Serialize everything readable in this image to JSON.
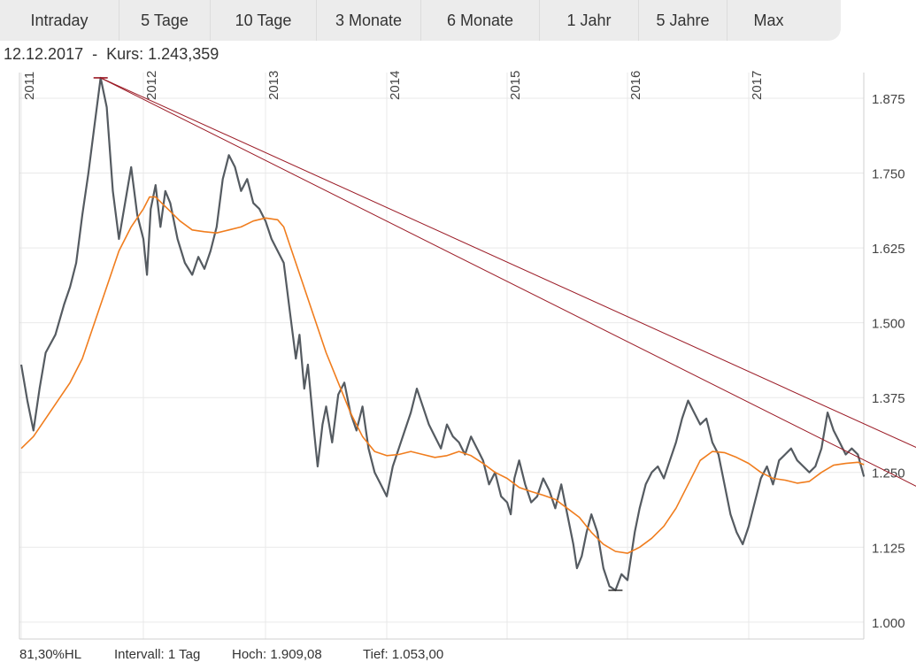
{
  "tabs": [
    "Intraday",
    "5 Tage",
    "10 Tage",
    "3 Monate",
    "6 Monate",
    "1 Jahr",
    "5 Jahre",
    "Max"
  ],
  "header": {
    "date": "12.12.2017",
    "separator": "-",
    "kurs_label": "Kurs:",
    "kurs_value": "1.243,359"
  },
  "footer": {
    "hl": "81,30%HL",
    "interval": "Intervall: 1 Tag",
    "hoch": "Hoch: 1.909,08",
    "tief": "Tief: 1.053,00"
  },
  "colors": {
    "price": "#555b61",
    "moving_average": "#f07d1e",
    "trendline": "#9b1b26",
    "grid": "#e9e9e9"
  },
  "chart_data": {
    "type": "line",
    "x_labels": [
      "2011",
      "2012",
      "2013",
      "2014",
      "2015",
      "2016",
      "2017"
    ],
    "y_ticks": [
      "1.875",
      "1.750",
      "1.625",
      "1.500",
      "1.375",
      "1.250",
      "1.125",
      "1.000"
    ],
    "ylim": [
      1000,
      1909
    ],
    "grid": true,
    "high": 1909.08,
    "low": 1053.0,
    "series": [
      {
        "style": "price",
        "points": [
          [
            2011.0,
            1430
          ],
          [
            2011.05,
            1370
          ],
          [
            2011.1,
            1320
          ],
          [
            2011.15,
            1390
          ],
          [
            2011.2,
            1450
          ],
          [
            2011.28,
            1480
          ],
          [
            2011.35,
            1530
          ],
          [
            2011.4,
            1560
          ],
          [
            2011.45,
            1600
          ],
          [
            2011.5,
            1680
          ],
          [
            2011.55,
            1750
          ],
          [
            2011.6,
            1830
          ],
          [
            2011.65,
            1909
          ],
          [
            2011.7,
            1860
          ],
          [
            2011.75,
            1720
          ],
          [
            2011.8,
            1640
          ],
          [
            2011.85,
            1700
          ],
          [
            2011.9,
            1760
          ],
          [
            2011.95,
            1680
          ],
          [
            2012.0,
            1640
          ],
          [
            2012.03,
            1580
          ],
          [
            2012.06,
            1690
          ],
          [
            2012.1,
            1730
          ],
          [
            2012.14,
            1660
          ],
          [
            2012.18,
            1720
          ],
          [
            2012.22,
            1700
          ],
          [
            2012.28,
            1640
          ],
          [
            2012.34,
            1600
          ],
          [
            2012.4,
            1580
          ],
          [
            2012.45,
            1610
          ],
          [
            2012.5,
            1590
          ],
          [
            2012.55,
            1620
          ],
          [
            2012.6,
            1660
          ],
          [
            2012.65,
            1740
          ],
          [
            2012.7,
            1780
          ],
          [
            2012.75,
            1760
          ],
          [
            2012.8,
            1720
          ],
          [
            2012.85,
            1740
          ],
          [
            2012.9,
            1700
          ],
          [
            2012.95,
            1690
          ],
          [
            2013.0,
            1670
          ],
          [
            2013.05,
            1640
          ],
          [
            2013.1,
            1620
          ],
          [
            2013.15,
            1600
          ],
          [
            2013.2,
            1520
          ],
          [
            2013.25,
            1440
          ],
          [
            2013.28,
            1480
          ],
          [
            2013.32,
            1390
          ],
          [
            2013.35,
            1430
          ],
          [
            2013.4,
            1320
          ],
          [
            2013.43,
            1260
          ],
          [
            2013.47,
            1330
          ],
          [
            2013.5,
            1360
          ],
          [
            2013.55,
            1300
          ],
          [
            2013.6,
            1380
          ],
          [
            2013.65,
            1400
          ],
          [
            2013.7,
            1350
          ],
          [
            2013.75,
            1320
          ],
          [
            2013.8,
            1360
          ],
          [
            2013.85,
            1290
          ],
          [
            2013.9,
            1250
          ],
          [
            2013.95,
            1230
          ],
          [
            2014.0,
            1210
          ],
          [
            2014.05,
            1260
          ],
          [
            2014.1,
            1290
          ],
          [
            2014.15,
            1320
          ],
          [
            2014.2,
            1350
          ],
          [
            2014.25,
            1390
          ],
          [
            2014.3,
            1360
          ],
          [
            2014.35,
            1330
          ],
          [
            2014.4,
            1310
          ],
          [
            2014.45,
            1290
          ],
          [
            2014.5,
            1330
          ],
          [
            2014.55,
            1310
          ],
          [
            2014.6,
            1300
          ],
          [
            2014.65,
            1280
          ],
          [
            2014.7,
            1310
          ],
          [
            2014.75,
            1290
          ],
          [
            2014.8,
            1270
          ],
          [
            2014.85,
            1230
          ],
          [
            2014.9,
            1250
          ],
          [
            2014.95,
            1210
          ],
          [
            2015.0,
            1200
          ],
          [
            2015.03,
            1180
          ],
          [
            2015.06,
            1240
          ],
          [
            2015.1,
            1270
          ],
          [
            2015.15,
            1230
          ],
          [
            2015.2,
            1200
          ],
          [
            2015.25,
            1210
          ],
          [
            2015.3,
            1240
          ],
          [
            2015.35,
            1220
          ],
          [
            2015.4,
            1190
          ],
          [
            2015.45,
            1230
          ],
          [
            2015.5,
            1180
          ],
          [
            2015.55,
            1130
          ],
          [
            2015.58,
            1090
          ],
          [
            2015.62,
            1110
          ],
          [
            2015.66,
            1150
          ],
          [
            2015.7,
            1180
          ],
          [
            2015.75,
            1150
          ],
          [
            2015.8,
            1090
          ],
          [
            2015.85,
            1060
          ],
          [
            2015.9,
            1053
          ],
          [
            2015.95,
            1080
          ],
          [
            2016.0,
            1070
          ],
          [
            2016.03,
            1110
          ],
          [
            2016.06,
            1150
          ],
          [
            2016.1,
            1190
          ],
          [
            2016.15,
            1230
          ],
          [
            2016.2,
            1250
          ],
          [
            2016.25,
            1260
          ],
          [
            2016.3,
            1240
          ],
          [
            2016.35,
            1270
          ],
          [
            2016.4,
            1300
          ],
          [
            2016.45,
            1340
          ],
          [
            2016.5,
            1370
          ],
          [
            2016.55,
            1350
          ],
          [
            2016.6,
            1330
          ],
          [
            2016.65,
            1340
          ],
          [
            2016.7,
            1300
          ],
          [
            2016.75,
            1280
          ],
          [
            2016.8,
            1230
          ],
          [
            2016.85,
            1180
          ],
          [
            2016.9,
            1150
          ],
          [
            2016.95,
            1130
          ],
          [
            2017.0,
            1160
          ],
          [
            2017.05,
            1200
          ],
          [
            2017.1,
            1240
          ],
          [
            2017.15,
            1260
          ],
          [
            2017.2,
            1230
          ],
          [
            2017.25,
            1270
          ],
          [
            2017.3,
            1280
          ],
          [
            2017.35,
            1290
          ],
          [
            2017.4,
            1270
          ],
          [
            2017.45,
            1260
          ],
          [
            2017.5,
            1250
          ],
          [
            2017.55,
            1260
          ],
          [
            2017.6,
            1290
          ],
          [
            2017.65,
            1350
          ],
          [
            2017.7,
            1320
          ],
          [
            2017.75,
            1300
          ],
          [
            2017.8,
            1280
          ],
          [
            2017.85,
            1290
          ],
          [
            2017.9,
            1280
          ],
          [
            2017.95,
            1243
          ]
        ]
      },
      {
        "style": "moving_average",
        "points": [
          [
            2011.0,
            1290
          ],
          [
            2011.1,
            1310
          ],
          [
            2011.2,
            1340
          ],
          [
            2011.3,
            1370
          ],
          [
            2011.4,
            1400
          ],
          [
            2011.5,
            1440
          ],
          [
            2011.6,
            1500
          ],
          [
            2011.7,
            1560
          ],
          [
            2011.8,
            1620
          ],
          [
            2011.9,
            1660
          ],
          [
            2012.0,
            1690
          ],
          [
            2012.05,
            1710
          ],
          [
            2012.1,
            1710
          ],
          [
            2012.15,
            1700
          ],
          [
            2012.2,
            1690
          ],
          [
            2012.3,
            1670
          ],
          [
            2012.4,
            1655
          ],
          [
            2012.5,
            1652
          ],
          [
            2012.6,
            1650
          ],
          [
            2012.7,
            1655
          ],
          [
            2012.8,
            1660
          ],
          [
            2012.9,
            1670
          ],
          [
            2013.0,
            1675
          ],
          [
            2013.1,
            1672
          ],
          [
            2013.15,
            1660
          ],
          [
            2013.2,
            1630
          ],
          [
            2013.3,
            1570
          ],
          [
            2013.4,
            1510
          ],
          [
            2013.5,
            1450
          ],
          [
            2013.6,
            1400
          ],
          [
            2013.7,
            1350
          ],
          [
            2013.8,
            1310
          ],
          [
            2013.9,
            1285
          ],
          [
            2014.0,
            1278
          ],
          [
            2014.1,
            1280
          ],
          [
            2014.2,
            1285
          ],
          [
            2014.3,
            1280
          ],
          [
            2014.4,
            1275
          ],
          [
            2014.5,
            1278
          ],
          [
            2014.6,
            1285
          ],
          [
            2014.7,
            1278
          ],
          [
            2014.8,
            1265
          ],
          [
            2014.9,
            1250
          ],
          [
            2015.0,
            1240
          ],
          [
            2015.1,
            1225
          ],
          [
            2015.2,
            1218
          ],
          [
            2015.3,
            1212
          ],
          [
            2015.4,
            1205
          ],
          [
            2015.5,
            1190
          ],
          [
            2015.6,
            1175
          ],
          [
            2015.7,
            1150
          ],
          [
            2015.8,
            1130
          ],
          [
            2015.9,
            1118
          ],
          [
            2016.0,
            1115
          ],
          [
            2016.1,
            1125
          ],
          [
            2016.2,
            1140
          ],
          [
            2016.3,
            1160
          ],
          [
            2016.4,
            1190
          ],
          [
            2016.5,
            1230
          ],
          [
            2016.6,
            1270
          ],
          [
            2016.7,
            1285
          ],
          [
            2016.8,
            1283
          ],
          [
            2016.9,
            1275
          ],
          [
            2017.0,
            1265
          ],
          [
            2017.1,
            1250
          ],
          [
            2017.2,
            1240
          ],
          [
            2017.3,
            1237
          ],
          [
            2017.4,
            1232
          ],
          [
            2017.5,
            1235
          ],
          [
            2017.6,
            1250
          ],
          [
            2017.7,
            1262
          ],
          [
            2017.8,
            1265
          ],
          [
            2017.9,
            1267
          ],
          [
            2017.95,
            1263
          ]
        ]
      }
    ],
    "trendlines": [
      [
        [
          2011.65,
          1909
        ],
        [
          2018.4,
          1290
        ]
      ],
      [
        [
          2011.65,
          1909
        ],
        [
          2018.4,
          1225
        ]
      ]
    ]
  }
}
